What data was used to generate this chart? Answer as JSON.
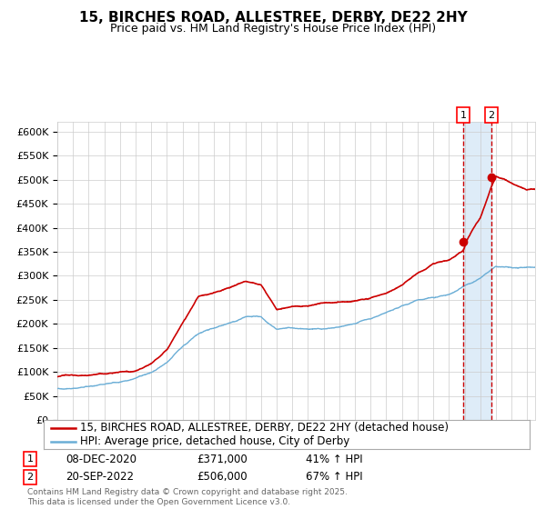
{
  "title": "15, BIRCHES ROAD, ALLESTREE, DERBY, DE22 2HY",
  "subtitle": "Price paid vs. HM Land Registry's House Price Index (HPI)",
  "ylim": [
    0,
    620000
  ],
  "yticks": [
    0,
    50000,
    100000,
    150000,
    200000,
    250000,
    300000,
    350000,
    400000,
    450000,
    500000,
    550000,
    600000
  ],
  "xlim_start": 1995.0,
  "xlim_end": 2025.5,
  "hpi_color": "#6baed6",
  "price_color": "#cc0000",
  "marker1_date": 2020.92,
  "marker1_price": 371000,
  "marker1_label": "1",
  "marker2_date": 2022.72,
  "marker2_price": 506000,
  "marker2_label": "2",
  "shade_start": 2020.92,
  "shade_end": 2022.72,
  "legend_price_label": "15, BIRCHES ROAD, ALLESTREE, DERBY, DE22 2HY (detached house)",
  "legend_hpi_label": "HPI: Average price, detached house, City of Derby",
  "annotation1_date": "08-DEC-2020",
  "annotation1_price": "£371,000",
  "annotation1_pct": "41% ↑ HPI",
  "annotation2_date": "20-SEP-2022",
  "annotation2_price": "£506,000",
  "annotation2_pct": "67% ↑ HPI",
  "footer": "Contains HM Land Registry data © Crown copyright and database right 2025.\nThis data is licensed under the Open Government Licence v3.0.",
  "background_color": "#ffffff",
  "grid_color": "#cccccc",
  "title_fontsize": 11,
  "subtitle_fontsize": 9,
  "tick_fontsize": 8,
  "legend_fontsize": 8.5,
  "hpi_key_years": [
    1995,
    1996,
    1997,
    1998,
    1999,
    2000,
    2001,
    2002,
    2003,
    2004,
    2005,
    2006,
    2007,
    2008,
    2009,
    2010,
    2011,
    2012,
    2013,
    2014,
    2015,
    2016,
    2017,
    2018,
    2019,
    2020,
    2021,
    2022,
    2023,
    2024,
    2025.5
  ],
  "hpi_key_values": [
    65000,
    67000,
    70000,
    74000,
    78000,
    88000,
    100000,
    120000,
    150000,
    175000,
    185000,
    195000,
    207000,
    205000,
    178000,
    180000,
    178000,
    178000,
    183000,
    190000,
    200000,
    212000,
    225000,
    235000,
    242000,
    248000,
    268000,
    285000,
    308000,
    305000,
    305000
  ],
  "price_key_years": [
    1995,
    1996,
    1997,
    1998,
    1999,
    2000,
    2001,
    2002,
    2003,
    2004,
    2005,
    2006,
    2007,
    2008,
    2009,
    2010,
    2011,
    2012,
    2013,
    2014,
    2015,
    2016,
    2017,
    2018,
    2019,
    2020,
    2020.92,
    2021.2,
    2021.5,
    2022,
    2022.72,
    2023,
    2023.5,
    2024,
    2024.5,
    2025,
    2025.5
  ],
  "price_key_values": [
    90000,
    93000,
    96000,
    99000,
    103000,
    107000,
    125000,
    155000,
    210000,
    265000,
    275000,
    285000,
    297000,
    290000,
    238000,
    248000,
    248000,
    255000,
    258000,
    265000,
    268000,
    278000,
    295000,
    320000,
    342000,
    350000,
    371000,
    395000,
    415000,
    440000,
    506000,
    525000,
    520000,
    512000,
    505000,
    498000,
    500000
  ]
}
